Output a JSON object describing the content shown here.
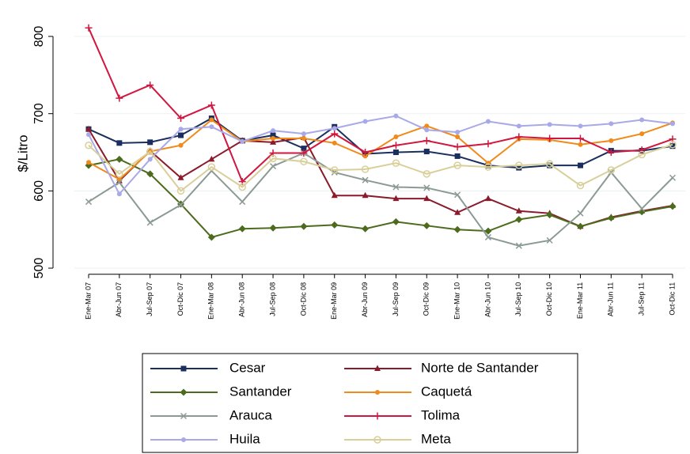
{
  "chart_data": {
    "type": "line",
    "ylabel": "$/Litro",
    "categories": [
      "Ene-Mar 07",
      "Abr-Jun 07",
      "Jul-Sep 07",
      "Oct-Dic 07",
      "Ene-Mar 08",
      "Abr-Jun 08",
      "Jul-Sep 08",
      "Oct-Dic 08",
      "Ene-Mar 09",
      "Abr-Jun 09",
      "Jul-Sep 09",
      "Oct-Dic 09",
      "Ene-Mar 10",
      "Abr-Jun 10",
      "Jul-Sep 10",
      "Oct-Dic 10",
      "Ene-Mar 11",
      "Abr-Jun 11",
      "Jul-Sep 11",
      "Oct-Dic 11"
    ],
    "ylim": [
      490,
      820
    ],
    "yticks": [
      500,
      600,
      700,
      800
    ],
    "grid": true,
    "series": [
      {
        "name": "Cesar",
        "color": "#1a2f5e",
        "marker": "square",
        "values": [
          680,
          662,
          663,
          672,
          694,
          665,
          672,
          655,
          683,
          648,
          650,
          651,
          645,
          633,
          630,
          633,
          633,
          652,
          652,
          658
        ]
      },
      {
        "name": "Norte de Santander",
        "color": "#8b1a2b",
        "marker": "triangle",
        "values": [
          680,
          613,
          652,
          617,
          641,
          665,
          663,
          669,
          594,
          594,
          590,
          590,
          572,
          590,
          574,
          571,
          554,
          566,
          574,
          581
        ]
      },
      {
        "name": "Santander",
        "color": "#4d6b1d",
        "marker": "diamond",
        "values": [
          633,
          641,
          622,
          583,
          540,
          551,
          552,
          554,
          556,
          551,
          560,
          555,
          550,
          548,
          563,
          569,
          554,
          565,
          573,
          580
        ]
      },
      {
        "name": "Caquetá",
        "color": "#f08a1a",
        "marker": "circle",
        "values": [
          637,
          615,
          651,
          659,
          692,
          664,
          668,
          668,
          662,
          645,
          670,
          684,
          670,
          636,
          667,
          666,
          660,
          665,
          674,
          688
        ]
      },
      {
        "name": "Arauca",
        "color": "#8c9a94",
        "marker": "x",
        "values": [
          586,
          611,
          559,
          582,
          626,
          586,
          632,
          649,
          624,
          614,
          605,
          604,
          595,
          540,
          529,
          536,
          571,
          624,
          577,
          617
        ]
      },
      {
        "name": "Tolima",
        "color": "#d0173f",
        "marker": "plus",
        "values": [
          811,
          720,
          737,
          694,
          711,
          612,
          649,
          649,
          674,
          650,
          659,
          665,
          657,
          661,
          670,
          668,
          668,
          650,
          653,
          667
        ]
      },
      {
        "name": "Huila",
        "color": "#a9a8e8",
        "marker": "circle",
        "values": [
          673,
          596,
          641,
          680,
          683,
          664,
          678,
          674,
          681,
          690,
          697,
          679,
          676,
          690,
          684,
          686,
          684,
          687,
          692,
          687
        ]
      },
      {
        "name": "Meta",
        "color": "#d8cf9a",
        "marker": "ring",
        "values": [
          659,
          622,
          651,
          600,
          631,
          605,
          642,
          638,
          627,
          628,
          636,
          622,
          633,
          631,
          633,
          635,
          607,
          627,
          647,
          660
        ]
      }
    ]
  }
}
